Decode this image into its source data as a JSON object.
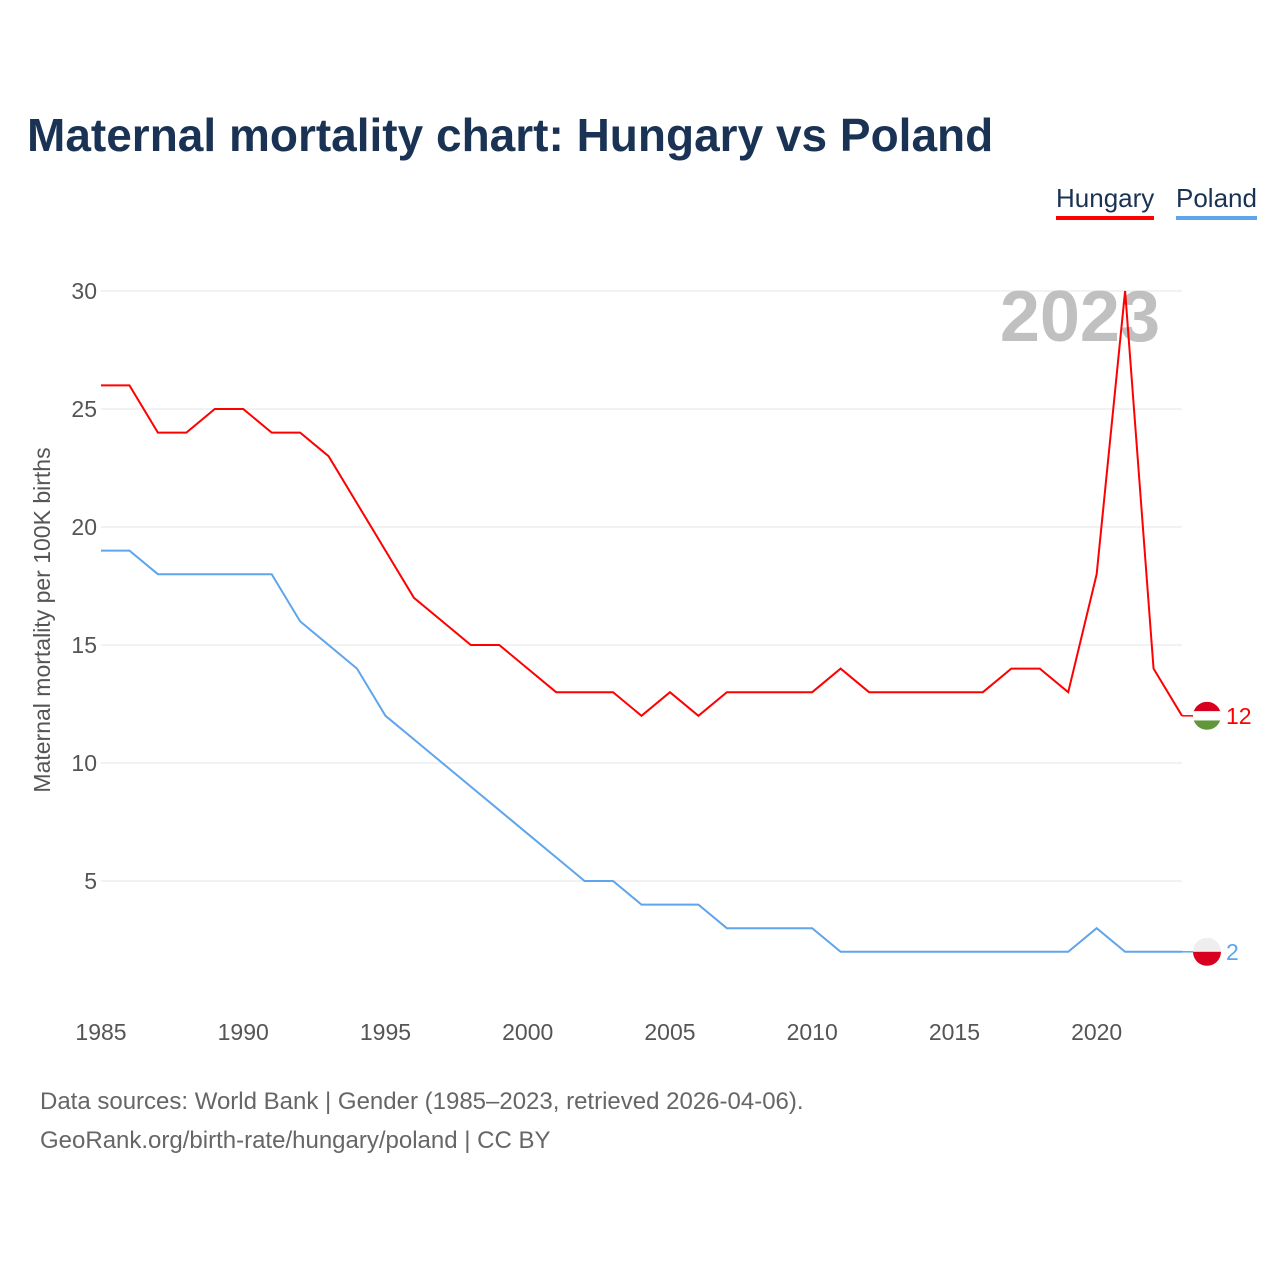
{
  "title": "Maternal mortality chart: Hungary vs Poland",
  "footer": {
    "line1": "Data sources: World Bank | Gender (1985–2023, retrieved 2026-04-06).",
    "line2": "GeoRank.org/birth-rate/hungary/poland | CC BY"
  },
  "chart_data": {
    "type": "line",
    "title": "Maternal mortality chart: Hungary vs Poland",
    "ylabel": "Maternal mortality per 100K births",
    "xlabel": "",
    "year_label": "2023",
    "xlim": [
      1985,
      2023
    ],
    "ylim": [
      0,
      30
    ],
    "xticks": [
      "1985",
      "1990",
      "1995",
      "2000",
      "2005",
      "2010",
      "2015",
      "2020"
    ],
    "yticks": [
      "5",
      "10",
      "15",
      "20",
      "25",
      "30"
    ],
    "grid": true,
    "legend_position": "top-right",
    "x": [
      1985,
      1986,
      1987,
      1988,
      1989,
      1990,
      1991,
      1992,
      1993,
      1994,
      1995,
      1996,
      1997,
      1998,
      1999,
      2000,
      2001,
      2002,
      2003,
      2004,
      2005,
      2006,
      2007,
      2008,
      2009,
      2010,
      2011,
      2012,
      2013,
      2014,
      2015,
      2016,
      2017,
      2018,
      2019,
      2020,
      2021,
      2022,
      2023
    ],
    "series": [
      {
        "name": "Hungary",
        "color": "#ff0000",
        "end_label": "12",
        "values": [
          26,
          26,
          24,
          24,
          25,
          25,
          24,
          24,
          23,
          21,
          19,
          17,
          16,
          15,
          15,
          14,
          13,
          13,
          13,
          12,
          13,
          12,
          13,
          13,
          13,
          13,
          14,
          13,
          13,
          13,
          13,
          13,
          14,
          14,
          13,
          18,
          30,
          14,
          12
        ]
      },
      {
        "name": "Poland",
        "color": "#5ea5ec",
        "end_label": "2",
        "values": [
          19,
          19,
          18,
          18,
          18,
          18,
          18,
          16,
          15,
          14,
          12,
          11,
          10,
          9,
          8,
          7,
          6,
          5,
          5,
          4,
          4,
          4,
          3,
          3,
          3,
          3,
          2,
          2,
          2,
          2,
          2,
          2,
          2,
          2,
          2,
          3,
          2,
          2,
          2
        ]
      }
    ]
  }
}
